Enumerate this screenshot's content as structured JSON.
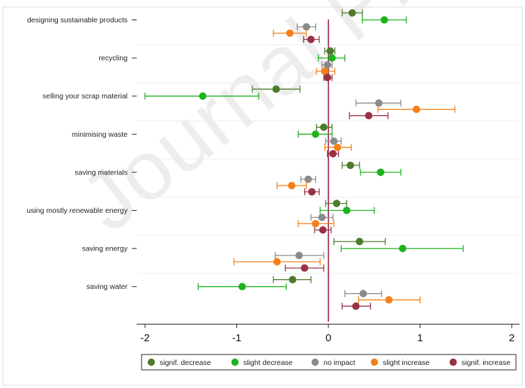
{
  "watermark": "Journal Pre-proof",
  "chart_data": {
    "type": "scatter",
    "subtype": "coefficient-plot-with-error-bars",
    "title": "",
    "xlabel": "",
    "ylabel": "",
    "xlim": [
      -2.05,
      2.05
    ],
    "xticks": [
      "-2",
      "-1",
      "0",
      "1",
      "2"
    ],
    "reference_line_x": 0,
    "reference_line_color": "#9b1b40",
    "grid": "horizontal",
    "legend_placement": "bottom",
    "categories": [
      "designing sustainable products",
      "recycling",
      "selling your scrap material",
      "minimising waste",
      "saving materials",
      "using mostly renewable energy",
      "saving energy",
      "saving water"
    ],
    "series": [
      {
        "name": "signif. decrease",
        "color": "#4e7a2c",
        "points": [
          {
            "est": 0.26,
            "lo": 0.15,
            "hi": 0.37
          },
          {
            "est": 0.02,
            "lo": -0.04,
            "hi": 0.07
          },
          {
            "est": -0.57,
            "lo": -0.83,
            "hi": -0.31
          },
          {
            "est": -0.05,
            "lo": -0.13,
            "hi": 0.04
          },
          {
            "est": 0.24,
            "lo": 0.15,
            "hi": 0.34
          },
          {
            "est": 0.09,
            "lo": -0.03,
            "hi": 0.2
          },
          {
            "est": 0.34,
            "lo": 0.06,
            "hi": 0.62
          },
          {
            "est": -0.39,
            "lo": -0.6,
            "hi": -0.19
          }
        ]
      },
      {
        "name": "slight decrease",
        "color": "#1db31d",
        "points": [
          {
            "est": 0.61,
            "lo": 0.37,
            "hi": 0.85
          },
          {
            "est": 0.04,
            "lo": -0.11,
            "hi": 0.18
          },
          {
            "est": -1.37,
            "lo": -2.0,
            "hi": -0.76
          },
          {
            "est": -0.14,
            "lo": -0.33,
            "hi": 0.04
          },
          {
            "est": 0.57,
            "lo": 0.35,
            "hi": 0.79
          },
          {
            "est": 0.2,
            "lo": -0.09,
            "hi": 0.5
          },
          {
            "est": 0.81,
            "lo": 0.14,
            "hi": 1.47
          },
          {
            "est": -0.94,
            "lo": -1.42,
            "hi": -0.46
          }
        ]
      },
      {
        "name": "no impact",
        "color": "#8a8a8a",
        "points": [
          {
            "est": -0.24,
            "lo": -0.34,
            "hi": -0.14
          },
          {
            "est": -0.01,
            "lo": -0.07,
            "hi": 0.04
          },
          {
            "est": 0.55,
            "lo": 0.3,
            "hi": 0.79
          },
          {
            "est": 0.06,
            "lo": -0.03,
            "hi": 0.14
          },
          {
            "est": -0.22,
            "lo": -0.3,
            "hi": -0.14
          },
          {
            "est": -0.07,
            "lo": -0.19,
            "hi": 0.05
          },
          {
            "est": -0.32,
            "lo": -0.58,
            "hi": -0.05
          },
          {
            "est": 0.38,
            "lo": 0.18,
            "hi": 0.58
          }
        ]
      },
      {
        "name": "slight increase",
        "color": "#f57f17",
        "points": [
          {
            "est": -0.42,
            "lo": -0.6,
            "hi": -0.24
          },
          {
            "est": -0.04,
            "lo": -0.13,
            "hi": 0.07
          },
          {
            "est": 0.96,
            "lo": 0.54,
            "hi": 1.38
          },
          {
            "est": 0.1,
            "lo": -0.04,
            "hi": 0.25
          },
          {
            "est": -0.4,
            "lo": -0.56,
            "hi": -0.24
          },
          {
            "est": -0.14,
            "lo": -0.33,
            "hi": 0.06
          },
          {
            "est": -0.56,
            "lo": -1.03,
            "hi": -0.09
          },
          {
            "est": 0.66,
            "lo": 0.33,
            "hi": 1.0
          }
        ]
      },
      {
        "name": "signif. increase",
        "color": "#983243",
        "points": [
          {
            "est": -0.19,
            "lo": -0.27,
            "hi": -0.1
          },
          {
            "est": -0.01,
            "lo": -0.05,
            "hi": 0.04
          },
          {
            "est": 0.44,
            "lo": 0.23,
            "hi": 0.65
          },
          {
            "est": 0.05,
            "lo": -0.01,
            "hi": 0.11
          },
          {
            "est": -0.18,
            "lo": -0.26,
            "hi": -0.1
          },
          {
            "est": -0.06,
            "lo": -0.15,
            "hi": 0.03
          },
          {
            "est": -0.26,
            "lo": -0.47,
            "hi": -0.05
          },
          {
            "est": 0.3,
            "lo": 0.15,
            "hi": 0.46
          }
        ]
      }
    ]
  }
}
